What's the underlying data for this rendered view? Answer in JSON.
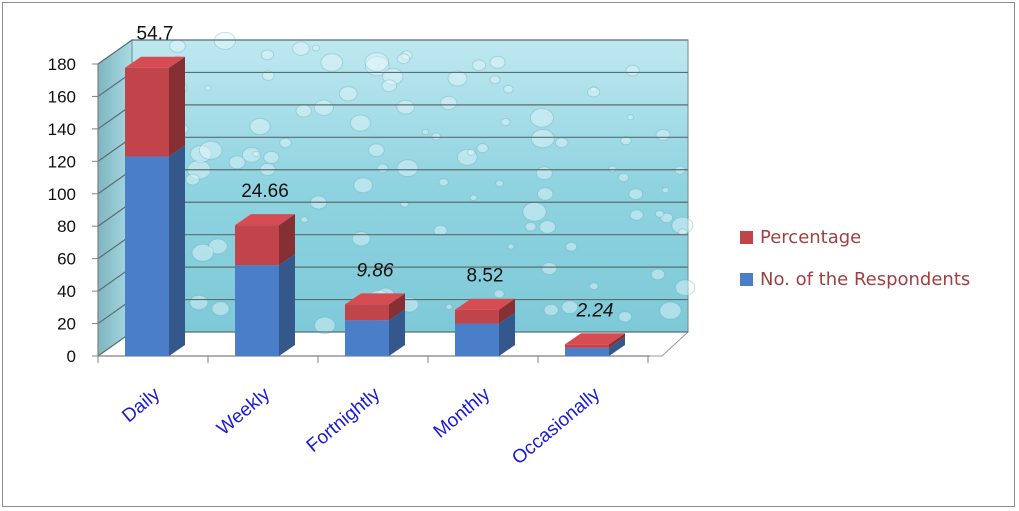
{
  "chart_data": {
    "type": "bar",
    "stacked": true,
    "three_d": true,
    "categories": [
      "Daily",
      "Weekly",
      "Fortnightly",
      "Monthly",
      "Occasionally"
    ],
    "series": [
      {
        "name": "No. of the Respondents",
        "values": [
          123,
          56,
          22,
          20,
          5
        ],
        "color": "#4a7ec8"
      },
      {
        "name": "Percentage",
        "values": [
          54.7,
          24.66,
          9.86,
          8.52,
          2.24
        ],
        "color": "#c0444a"
      }
    ],
    "data_labels": [
      "54.7",
      "24.66",
      "9.86",
      "8.52",
      "2.24"
    ],
    "y_ticks": [
      "0",
      "20",
      "40",
      "60",
      "80",
      "100",
      "120",
      "140",
      "160",
      "180"
    ],
    "ylim": [
      0,
      180
    ],
    "grid": true,
    "legend_position": "right",
    "backwall": "water-drops",
    "colors": {
      "grid": "#5a6e70",
      "backwall": "#8fd3e0",
      "category_text": "#1a1ad6",
      "legend_text": "#a04040"
    }
  }
}
